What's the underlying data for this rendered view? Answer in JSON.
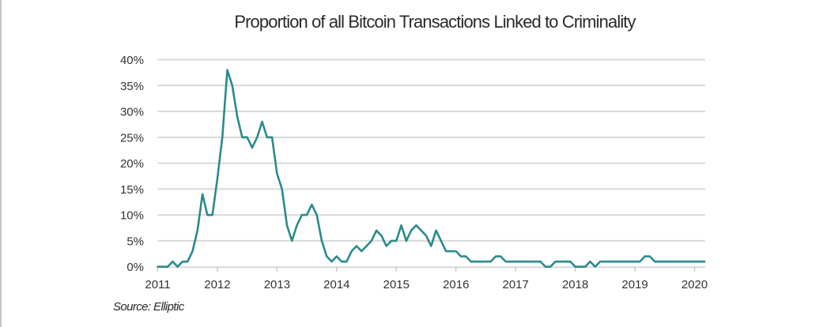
{
  "chart_data": {
    "type": "line",
    "title": "Proportion of all Bitcoin Transactions Linked to Criminality",
    "source": "Source: Elliptic",
    "xlabel": "",
    "ylabel": "",
    "ylim": [
      0,
      40
    ],
    "yticks": [
      0,
      5,
      10,
      15,
      20,
      25,
      30,
      35,
      40
    ],
    "ytick_labels": [
      "0%",
      "5%",
      "10%",
      "15%",
      "20%",
      "25%",
      "30%",
      "35%",
      "40%"
    ],
    "xlim_years": [
      2011,
      2020.25
    ],
    "xticks": [
      2011,
      2012,
      2013,
      2014,
      2015,
      2016,
      2017,
      2018,
      2019,
      2020
    ],
    "xtick_labels": [
      "2011",
      "2012",
      "2013",
      "2014",
      "2015",
      "2016",
      "2017",
      "2018",
      "2019",
      "2020"
    ],
    "grid": true,
    "legend": "none",
    "series": [
      {
        "name": "Proportion linked to criminality (%)",
        "color": "#2b8a8c",
        "frequency": "monthly",
        "start": "2011-01",
        "values": [
          0,
          0,
          0,
          1,
          0,
          1,
          1,
          3,
          7,
          14,
          10,
          10,
          17,
          25,
          38,
          35,
          29,
          25,
          25,
          23,
          25,
          28,
          25,
          25,
          18,
          15,
          8,
          5,
          8,
          10,
          10,
          12,
          10,
          5,
          2,
          1,
          2,
          1,
          1,
          3,
          4,
          3,
          4,
          5,
          7,
          6,
          4,
          5,
          5,
          8,
          5,
          7,
          8,
          7,
          6,
          4,
          7,
          5,
          3,
          3,
          3,
          2,
          2,
          1,
          1,
          1,
          1,
          1,
          2,
          2,
          1,
          1,
          1,
          1,
          1,
          1,
          1,
          1,
          0,
          0,
          1,
          1,
          1,
          1,
          0,
          0,
          0,
          1,
          0,
          1,
          1,
          1,
          1,
          1,
          1,
          1,
          1,
          1,
          2,
          2,
          1,
          1,
          1,
          1,
          1,
          1,
          1,
          1,
          1,
          1,
          1
        ]
      }
    ]
  },
  "colors": {
    "line": "#2b8a8c",
    "grid": "#d9d9d9",
    "text": "#333333"
  }
}
